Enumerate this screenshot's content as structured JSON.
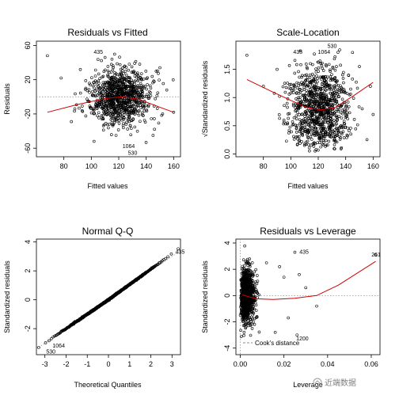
{
  "colors": {
    "points": "#000000",
    "smoother": "#d00000",
    "reference": "#999999",
    "watermark": "#8a8a8a"
  },
  "watermark": {
    "text": "近端数据"
  },
  "chart_data": [
    {
      "id": "resid-fitted",
      "type": "scatter",
      "title": "Residuals vs Fitted",
      "xlabel": "Fitted values",
      "ylabel": "Residuals",
      "xlim": [
        60,
        165
      ],
      "ylim": [
        -70,
        65
      ],
      "x_ticks": [
        80,
        100,
        120,
        140,
        160
      ],
      "y_ticks": [
        -60,
        -20,
        20,
        60
      ],
      "y_tick_labels_rotated": true,
      "reference_line": {
        "y": 0,
        "style": "dotted"
      },
      "point_cloud": {
        "n": 950,
        "x_center": 121,
        "x_sd": 11,
        "y_sd": 16
      },
      "outliers": [
        [
          68,
          48
        ],
        [
          78,
          22
        ],
        [
          88,
          -14
        ],
        [
          92,
          32
        ],
        [
          96,
          10
        ],
        [
          150,
          34
        ],
        [
          152,
          -20
        ],
        [
          155,
          8
        ],
        [
          160,
          -18
        ],
        [
          102,
          -52
        ],
        [
          145,
          -45
        ],
        [
          110,
          46
        ]
      ],
      "smoother": {
        "x": [
          68,
          90,
          110,
          122,
          135,
          148,
          160
        ],
        "y": [
          -18,
          -9,
          -2,
          0,
          -3,
          -11,
          -18
        ]
      },
      "annotations": [
        {
          "label": "435",
          "x": 100,
          "y": 52
        },
        {
          "label": "1064",
          "x": 121,
          "y": -58
        },
        {
          "label": "530",
          "x": 125,
          "y": -66
        }
      ]
    },
    {
      "id": "scale-location",
      "type": "scatter",
      "title": "Scale-Location",
      "xlabel": "Fitted values",
      "ylabel": "√Standardized residuals",
      "xlim": [
        60,
        165
      ],
      "ylim": [
        -0.05,
        2.0
      ],
      "x_ticks": [
        80,
        100,
        120,
        140,
        160
      ],
      "y_ticks": [
        0.0,
        0.5,
        1.0,
        1.5
      ],
      "y_tick_labels": [
        "0.0",
        "0.5",
        "1.0",
        "1.5"
      ],
      "y_tick_labels_rotated": true,
      "point_cloud": {
        "n": 950,
        "x_center": 121,
        "x_sd": 11
      },
      "outliers": [
        [
          68,
          1.75
        ],
        [
          80,
          1.2
        ],
        [
          90,
          1.5
        ],
        [
          95,
          0.6
        ],
        [
          150,
          1.55
        ],
        [
          152,
          0.8
        ],
        [
          158,
          1.2
        ],
        [
          160,
          0.7
        ],
        [
          145,
          1.8
        ],
        [
          110,
          0.15
        ]
      ],
      "smoother": {
        "x": [
          68,
          85,
          100,
          112,
          122,
          132,
          145,
          160
        ],
        "y": [
          1.32,
          1.12,
          0.95,
          0.82,
          0.78,
          0.82,
          1.02,
          1.27
        ]
      },
      "annotations": [
        {
          "label": "530",
          "x": 125,
          "y": 1.91
        },
        {
          "label": "435",
          "x": 100,
          "y": 1.8
        },
        {
          "label": "1064",
          "x": 118,
          "y": 1.8
        }
      ]
    },
    {
      "id": "normal-qq",
      "type": "scatter",
      "title": "Normal Q-Q",
      "xlabel": "Theoretical Quantiles",
      "ylabel": "Standardized residuals",
      "xlim": [
        -3.4,
        3.4
      ],
      "ylim": [
        -3.8,
        4.2
      ],
      "x_ticks": [
        -3,
        -2,
        -1,
        0,
        1,
        2,
        3
      ],
      "y_ticks": [
        -2,
        0,
        2,
        4
      ],
      "y_tick_labels_rotated": true,
      "reference_line": {
        "intercept": 0,
        "slope": 1,
        "style": "dotted"
      },
      "n_points": 1000,
      "annotations": [
        {
          "label": "435",
          "x": 3.05,
          "y": 3.3
        },
        {
          "label": "1064",
          "x": -2.75,
          "y": -3.2
        },
        {
          "label": "530",
          "x": -3.05,
          "y": -3.6
        }
      ]
    },
    {
      "id": "resid-leverage",
      "type": "scatter",
      "title": "Residuals vs Leverage",
      "xlabel": "Leverage",
      "ylabel": "Standardized residuals",
      "xlim": [
        -0.002,
        0.064
      ],
      "ylim": [
        -4.5,
        4.3
      ],
      "x_ticks": [
        0.0,
        0.02,
        0.04,
        0.06
      ],
      "x_tick_labels": [
        "0.00",
        "0.02",
        "0.04",
        "0.06"
      ],
      "y_ticks": [
        -4,
        -2,
        0,
        2,
        4
      ],
      "y_tick_labels_rotated": true,
      "reference_line": {
        "y": 0,
        "style": "dotted"
      },
      "point_cloud": {
        "n": 950,
        "x_min": 0.0,
        "x_mode": 0.004
      },
      "outliers": [
        [
          0.012,
          2.5
        ],
        [
          0.016,
          -2.8
        ],
        [
          0.018,
          2.2
        ],
        [
          0.022,
          -1.7
        ],
        [
          0.02,
          1.4
        ],
        [
          0.025,
          3.3
        ],
        [
          0.027,
          1.6
        ],
        [
          0.026,
          -3.0
        ],
        [
          0.03,
          0.6
        ],
        [
          0.035,
          -0.8
        ],
        [
          0.062,
          3.1
        ]
      ],
      "smoother": {
        "x": [
          0.001,
          0.004,
          0.008,
          0.015,
          0.025,
          0.035,
          0.045,
          0.062
        ],
        "y": [
          0.05,
          -0.1,
          -0.25,
          -0.3,
          -0.2,
          0.0,
          0.8,
          2.6
        ]
      },
      "annotations": [
        {
          "label": "435",
          "x": 0.026,
          "y": 3.3
        },
        {
          "label": "261",
          "x": 0.059,
          "y": 3.1
        },
        {
          "label": "1200",
          "x": 0.0245,
          "y": -3.3
        }
      ],
      "legend": {
        "label": "Cook's distance",
        "position": "bottom-left"
      }
    }
  ]
}
